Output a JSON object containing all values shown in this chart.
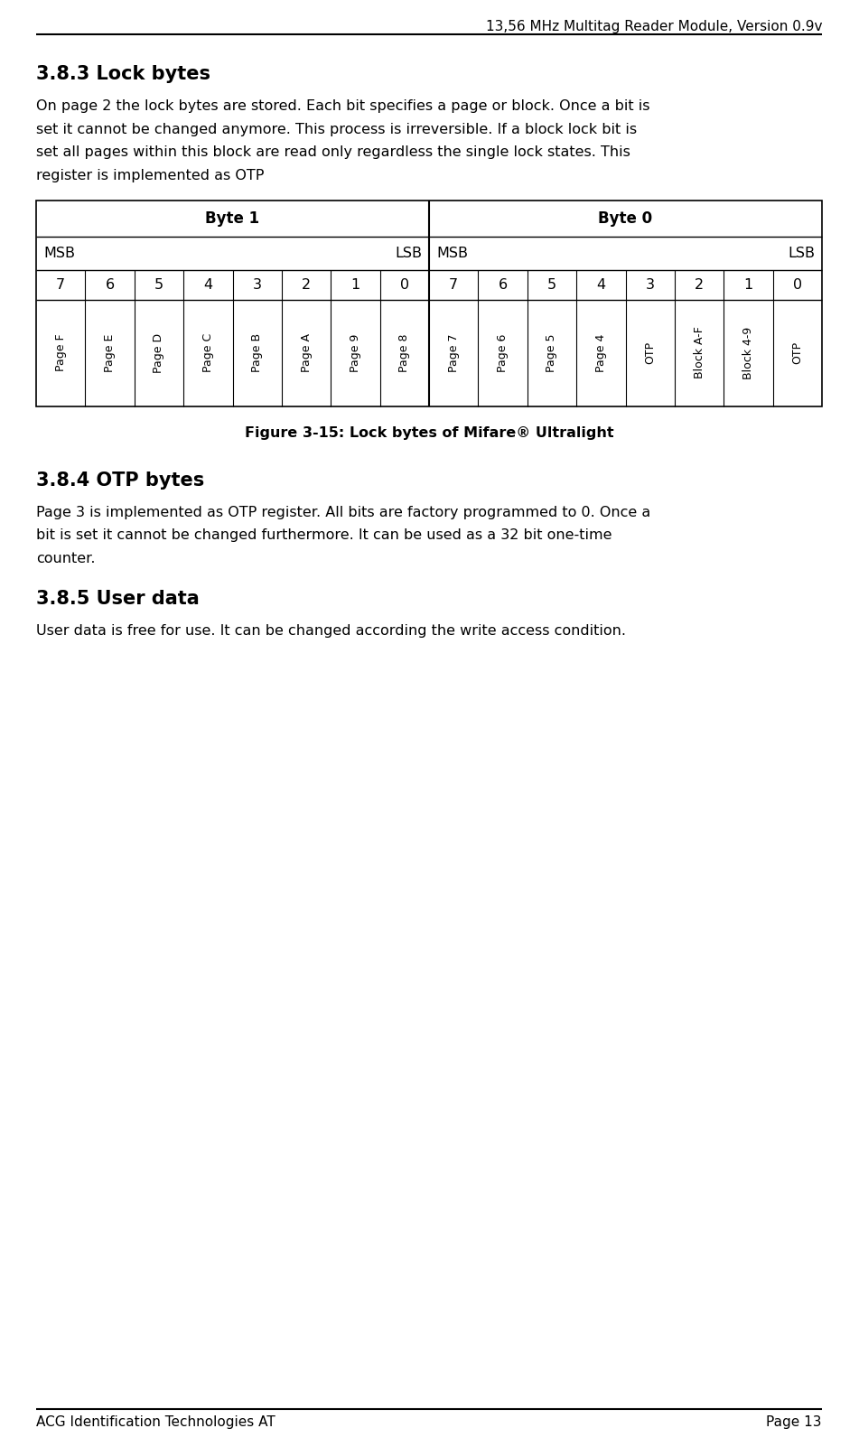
{
  "header_title": "13,56 MHz Multitag Reader Module, Version 0.9v",
  "footer_left": "ACG Identification Technologies AT",
  "footer_right": "Page 13",
  "section_383_title": "3.8.3 Lock bytes",
  "section_383_body_lines": [
    "On page 2 the lock bytes are stored. Each bit specifies a page or block. Once a bit is",
    "set it cannot be changed anymore. This process is irreversible. If a block lock bit is",
    "set all pages within this block are read only regardless the single lock states. This",
    "register is implemented as OTP"
  ],
  "figure_caption": "Figure 3-15: Lock bytes of Mifare® Ultralight",
  "section_384_title": "3.8.4 OTP bytes",
  "section_384_body_lines": [
    "Page 3 is implemented as OTP register. All bits are factory programmed to 0. Once a",
    "bit is set it cannot be changed furthermore. It can be used as a 32 bit one-time",
    "counter."
  ],
  "section_385_title": "3.8.5 User data",
  "section_385_body": "User data is free for use. It can be changed according the write access condition.",
  "table": {
    "byte1_label": "Byte 1",
    "byte0_label": "Byte 0",
    "bit_row": [
      "7",
      "6",
      "5",
      "4",
      "3",
      "2",
      "1",
      "0"
    ],
    "label_row_byte1": [
      "Page F",
      "Page E",
      "Page D",
      "Page C",
      "Page B",
      "Page A",
      "Page 9",
      "Page 8"
    ],
    "label_row_byte0": [
      "Page 7",
      "Page 6",
      "Page 5",
      "Page 4",
      "OTP",
      "Block A-F",
      "Block 4-9",
      "OTP"
    ]
  },
  "bg_color": "#ffffff",
  "text_color": "#000000",
  "line_color": "#000000"
}
